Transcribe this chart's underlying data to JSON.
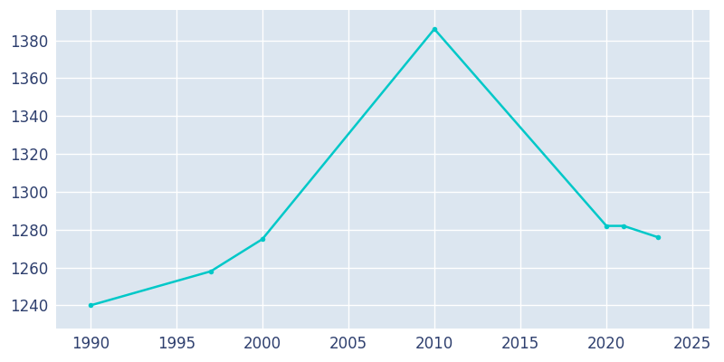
{
  "years": [
    1990,
    1997,
    2000,
    2010,
    2020,
    2021,
    2023
  ],
  "population": [
    1240,
    1258,
    1275,
    1386,
    1282,
    1282,
    1276
  ],
  "line_color": "#00C8C8",
  "marker": "o",
  "marker_size": 4,
  "bg_color": "#DCE6F0",
  "fig_bg_color": "#FFFFFF",
  "grid_color": "#FFFFFF",
  "xlabel": "",
  "ylabel": "",
  "xlim": [
    1988,
    2026
  ],
  "ylim": [
    1228,
    1396
  ],
  "xticks": [
    1990,
    1995,
    2000,
    2005,
    2010,
    2015,
    2020,
    2025
  ],
  "yticks": [
    1240,
    1260,
    1280,
    1300,
    1320,
    1340,
    1360,
    1380
  ],
  "tick_color": "#2E3F6E",
  "tick_labelsize": 12,
  "figsize": [
    8.0,
    4.0
  ],
  "dpi": 100,
  "linewidth": 1.8
}
